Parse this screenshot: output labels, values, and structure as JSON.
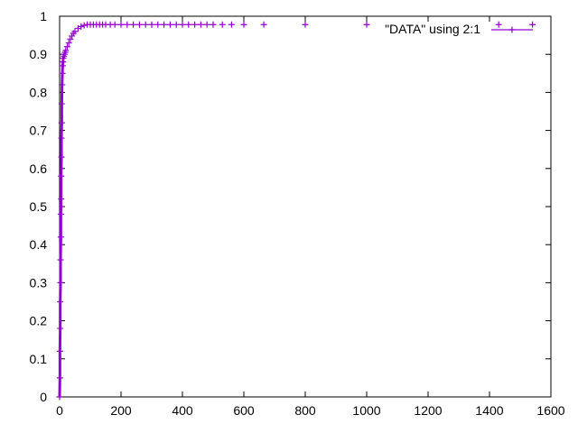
{
  "chart_data": {
    "type": "scatter",
    "title": "",
    "xlabel": "",
    "ylabel": "",
    "xlim": [
      0,
      1600
    ],
    "ylim": [
      0,
      1
    ],
    "x_ticks": [
      0,
      200,
      400,
      600,
      800,
      1000,
      1200,
      1400,
      1600
    ],
    "y_ticks": [
      0,
      0.1,
      0.2,
      0.3,
      0.4,
      0.5,
      0.6,
      0.7,
      0.8,
      0.9,
      1
    ],
    "x_tick_labels": [
      "0",
      "200",
      "400",
      "600",
      "800",
      "1000",
      "1200",
      "1400",
      "1600"
    ],
    "y_tick_labels": [
      "0",
      "0.1",
      "0.2",
      "0.3",
      "0.4",
      "0.5",
      "0.6",
      "0.7",
      "0.8",
      "0.9",
      "1"
    ],
    "grid": false,
    "legend_position": "top-right",
    "series_color": "#9400d3",
    "marker": "plus",
    "series": [
      {
        "name": "\"DATA\" using 2:1",
        "x": [
          0,
          1,
          1,
          2,
          2,
          3,
          3,
          4,
          4,
          5,
          5,
          6,
          6,
          7,
          7,
          8,
          9,
          10,
          11,
          12,
          14,
          16,
          18,
          20,
          25,
          30,
          35,
          40,
          45,
          50,
          60,
          70,
          80,
          90,
          100,
          110,
          120,
          130,
          140,
          150,
          165,
          180,
          200,
          220,
          240,
          260,
          280,
          300,
          320,
          340,
          360,
          380,
          400,
          420,
          440,
          460,
          480,
          500,
          530,
          560,
          600,
          665,
          800,
          1000,
          1430,
          1540
        ],
        "y": [
          0.0,
          0.05,
          0.12,
          0.18,
          0.25,
          0.3,
          0.36,
          0.42,
          0.48,
          0.52,
          0.58,
          0.63,
          0.68,
          0.72,
          0.77,
          0.82,
          0.85,
          0.87,
          0.88,
          0.89,
          0.895,
          0.9,
          0.905,
          0.91,
          0.92,
          0.93,
          0.94,
          0.948,
          0.955,
          0.96,
          0.968,
          0.973,
          0.976,
          0.978,
          0.978,
          0.978,
          0.978,
          0.978,
          0.978,
          0.978,
          0.978,
          0.978,
          0.978,
          0.978,
          0.978,
          0.978,
          0.978,
          0.978,
          0.978,
          0.978,
          0.978,
          0.978,
          0.978,
          0.978,
          0.978,
          0.978,
          0.978,
          0.978,
          0.978,
          0.978,
          0.978,
          0.978,
          0.978,
          0.978,
          0.978,
          0.978
        ]
      }
    ]
  }
}
